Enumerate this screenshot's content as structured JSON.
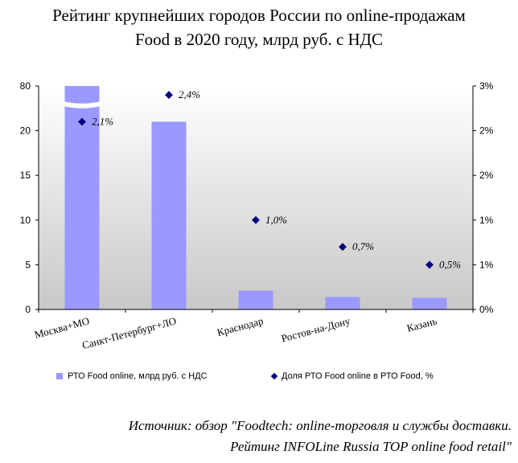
{
  "title_line1": "Рейтинг крупнейших городов России по online-продажам",
  "title_line2": "Food в 2020 году, млрд руб. с НДС",
  "source_line1": "Источник: обзор \"Foodtech: online-торговля и службы доставки.",
  "source_line2": "Рейтинг INFOLine Russia TOP online food retail\"",
  "chart_data": {
    "type": "bar",
    "categories": [
      "Москва+МО",
      "Санкт-Петербург+ЛО",
      "Краснодар",
      "Ростов-на-Дону",
      "Казань"
    ],
    "series": [
      {
        "name": "РТО Food online, млрд руб. с НДС",
        "type": "bar",
        "axis": "left",
        "values": [
          80,
          21,
          2.1,
          1.4,
          1.3
        ],
        "axis_break": {
          "break_value": 22.5,
          "top_value": 80,
          "top_label": "80"
        }
      },
      {
        "name": "Доля РТО Food online в РТО Food, %",
        "type": "scatter",
        "axis": "right",
        "values": [
          2.1,
          2.4,
          1.0,
          0.7,
          0.5
        ],
        "data_labels": [
          "2,1%",
          "2,4%",
          "1,0%",
          "0,7%",
          "0,5%"
        ]
      }
    ],
    "y_left": {
      "ticks": [
        0,
        5,
        10,
        15,
        20
      ],
      "tick_labels": [
        "0",
        "5",
        "10",
        "15",
        "20"
      ],
      "top_label": "80"
    },
    "y_right": {
      "range": [
        0,
        2.5
      ],
      "ticks": [
        0,
        0.5,
        1,
        1.5,
        2,
        2.5
      ],
      "tick_labels": [
        "0%",
        "1%",
        "1%",
        "2%",
        "2%",
        "3%"
      ]
    },
    "legend_position": "bottom",
    "colors": {
      "bar": "#9999ff",
      "marker": "#000080"
    }
  }
}
